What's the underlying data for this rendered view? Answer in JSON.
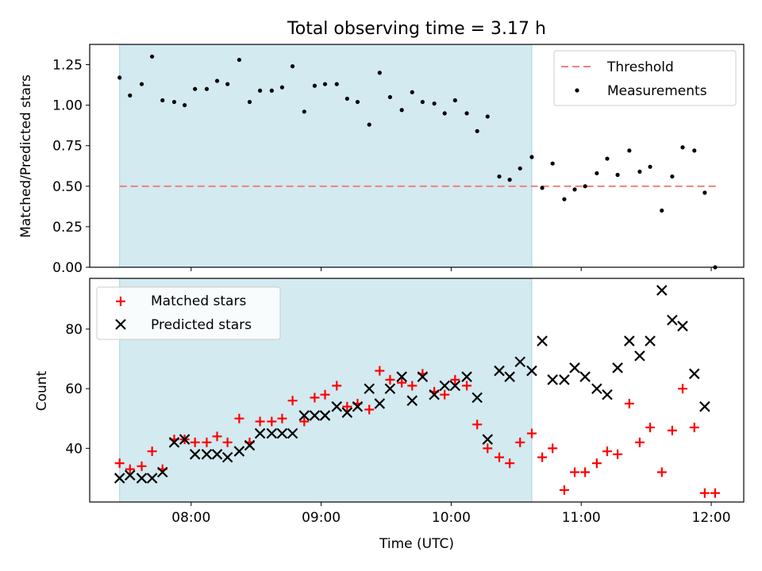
{
  "chart_data": [
    {
      "type": "scatter",
      "title": "Total observing time = 3.17 h",
      "xlabel": "",
      "ylabel": "Matched/Predicted stars",
      "ylim": [
        0,
        1.375
      ],
      "yticks": [
        0.0,
        0.25,
        0.5,
        0.75,
        1.0,
        1.25
      ],
      "ytick_labels": [
        "0.00",
        "0.25",
        "0.50",
        "0.75",
        "1.00",
        "1.25"
      ],
      "xlim_hours": [
        7.22,
        12.25
      ],
      "shaded_span_hours": [
        7.45,
        10.62
      ],
      "threshold": {
        "value": 0.5,
        "from": 7.45,
        "to": 12.05
      },
      "legend": {
        "position": "upper right",
        "entries": [
          "Threshold",
          "Measurements"
        ]
      },
      "series": [
        {
          "name": "Measurements",
          "x": [
            7.45,
            7.53,
            7.62,
            7.7,
            7.78,
            7.87,
            7.95,
            8.03,
            8.12,
            8.2,
            8.28,
            8.37,
            8.45,
            8.53,
            8.62,
            8.7,
            8.78,
            8.87,
            8.95,
            9.03,
            9.12,
            9.2,
            9.28,
            9.37,
            9.45,
            9.53,
            9.62,
            9.7,
            9.78,
            9.87,
            9.95,
            10.03,
            10.12,
            10.2,
            10.28,
            10.37,
            10.45,
            10.53,
            10.62,
            10.7,
            10.78,
            10.87,
            10.95,
            11.03,
            11.12,
            11.2,
            11.28,
            11.37,
            11.45,
            11.53,
            11.62,
            11.7,
            11.78,
            11.87,
            11.95,
            12.03
          ],
          "values": [
            1.17,
            1.06,
            1.13,
            1.3,
            1.03,
            1.02,
            1.0,
            1.1,
            1.1,
            1.15,
            1.13,
            1.28,
            1.02,
            1.09,
            1.09,
            1.11,
            1.24,
            0.96,
            1.12,
            1.13,
            1.13,
            1.04,
            1.02,
            0.88,
            1.2,
            1.05,
            0.97,
            1.08,
            1.02,
            1.01,
            0.95,
            1.03,
            0.95,
            0.84,
            0.93,
            0.56,
            0.54,
            0.61,
            0.68,
            0.49,
            0.64,
            0.42,
            0.48,
            0.5,
            0.58,
            0.67,
            0.57,
            0.72,
            0.59,
            0.62,
            0.35,
            0.56,
            0.74,
            0.72,
            0.46,
            0.0
          ]
        }
      ]
    },
    {
      "type": "scatter",
      "title": "",
      "xlabel": "Time (UTC)",
      "ylabel": "Count",
      "ylim": [
        22,
        97
      ],
      "yticks": [
        40,
        60,
        80
      ],
      "ytick_labels": [
        "40",
        "60",
        "80"
      ],
      "xticks_hours": [
        8,
        9,
        10,
        11,
        12
      ],
      "xtick_labels": [
        "08:00",
        "09:00",
        "10:00",
        "11:00",
        "12:00"
      ],
      "xlim_hours": [
        7.22,
        12.25
      ],
      "shaded_span_hours": [
        7.45,
        10.62
      ],
      "legend": {
        "position": "upper left",
        "entries": [
          "Matched stars",
          "Predicted stars"
        ]
      },
      "series": [
        {
          "name": "Matched stars",
          "x": [
            7.45,
            7.53,
            7.62,
            7.7,
            7.78,
            7.87,
            7.95,
            8.03,
            8.12,
            8.2,
            8.28,
            8.37,
            8.45,
            8.53,
            8.62,
            8.7,
            8.78,
            8.87,
            8.95,
            9.03,
            9.12,
            9.2,
            9.28,
            9.37,
            9.45,
            9.53,
            9.62,
            9.7,
            9.78,
            9.87,
            9.95,
            10.03,
            10.12,
            10.2,
            10.28,
            10.37,
            10.45,
            10.53,
            10.62,
            10.7,
            10.78,
            10.87,
            10.95,
            11.03,
            11.12,
            11.2,
            11.28,
            11.37,
            11.45,
            11.53,
            11.62,
            11.7,
            11.78,
            11.87,
            11.95,
            12.03
          ],
          "values": [
            35,
            33,
            34,
            39,
            33,
            43,
            43,
            42,
            42,
            44,
            42,
            50,
            42,
            49,
            49,
            50,
            56,
            49,
            57,
            58,
            61,
            54,
            55,
            53,
            66,
            63,
            62,
            61,
            65,
            59,
            58,
            63,
            61,
            48,
            40,
            37,
            35,
            42,
            45,
            37,
            40,
            26,
            32,
            32,
            35,
            39,
            38,
            55,
            42,
            47,
            32,
            46,
            60,
            47,
            25,
            25
          ]
        },
        {
          "name": "Predicted stars",
          "x": [
            7.45,
            7.53,
            7.62,
            7.7,
            7.78,
            7.87,
            7.95,
            8.03,
            8.12,
            8.2,
            8.28,
            8.37,
            8.45,
            8.53,
            8.62,
            8.7,
            8.78,
            8.87,
            8.95,
            9.03,
            9.12,
            9.2,
            9.28,
            9.37,
            9.45,
            9.53,
            9.62,
            9.7,
            9.78,
            9.87,
            9.95,
            10.03,
            10.12,
            10.2,
            10.28,
            10.37,
            10.45,
            10.53,
            10.62,
            10.7,
            10.78,
            10.87,
            10.95,
            11.03,
            11.12,
            11.2,
            11.28,
            11.37,
            11.45,
            11.53,
            11.62,
            11.7,
            11.78,
            11.87,
            11.95
          ],
          "values": [
            30,
            31,
            30,
            30,
            32,
            42,
            43,
            38,
            38,
            38,
            37,
            39,
            41,
            45,
            45,
            45,
            45,
            51,
            51,
            51,
            54,
            52,
            54,
            60,
            55,
            60,
            64,
            56,
            64,
            58,
            61,
            61,
            64,
            57,
            43,
            66,
            64,
            69,
            66,
            76,
            63,
            63,
            67,
            64,
            60,
            58,
            67,
            76,
            71,
            76,
            93,
            83,
            81,
            65,
            54
          ]
        }
      ]
    }
  ],
  "colors": {
    "span": "#d3eaf0",
    "span_edge": "#a9d6df",
    "threshold": "#f08080",
    "measurements": "#000000",
    "matched": "#ff0000",
    "predicted": "#000000"
  }
}
